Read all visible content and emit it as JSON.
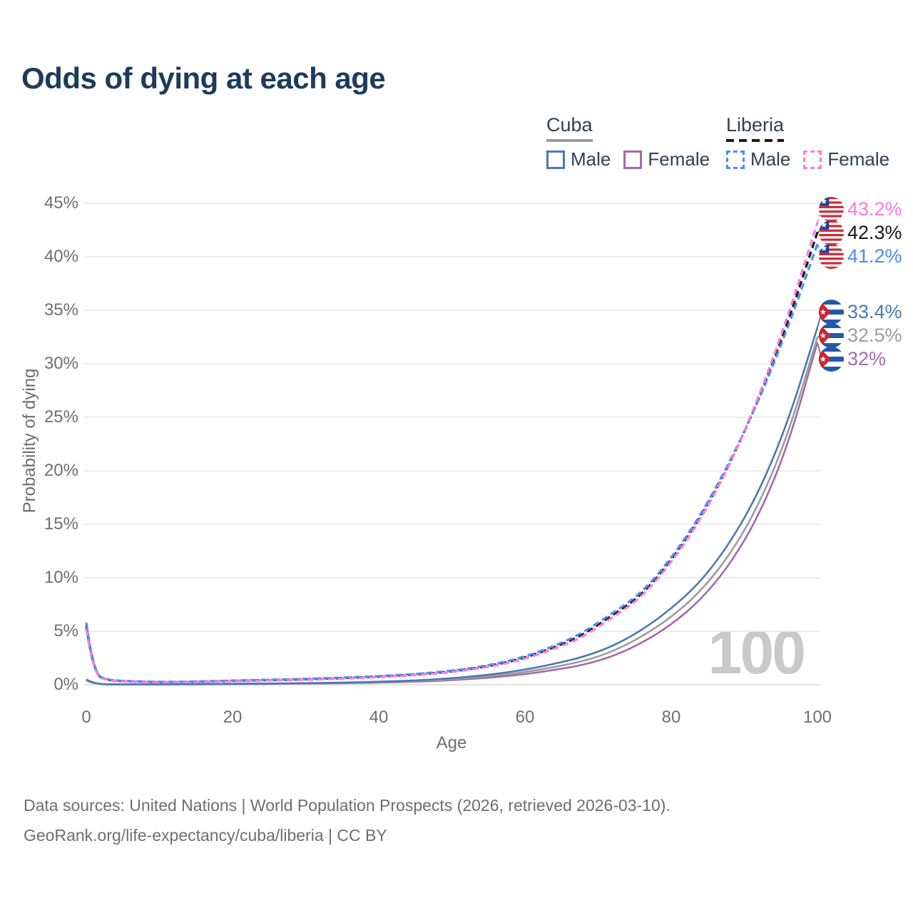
{
  "title": "Odds of dying at each age",
  "legend": {
    "cuba": {
      "name": "Cuba",
      "male_label": "Male",
      "female_label": "Female",
      "male_color": "#4a79b4",
      "female_color": "#a768a9",
      "line_color": "#9c9c9c",
      "line_style": "solid"
    },
    "liberia": {
      "name": "Liberia",
      "male_label": "Male",
      "female_label": "Female",
      "male_color": "#4d8cf2",
      "female_color": "#fb7be0",
      "line_color": "#191919",
      "line_style": "dashed"
    }
  },
  "chart_data": {
    "type": "line",
    "xlabel": "Age",
    "ylabel": "Probability of dying",
    "xlim": [
      0,
      100
    ],
    "ylim": [
      0,
      45
    ],
    "x_ticks": [
      "0",
      "20",
      "40",
      "60",
      "80",
      "100"
    ],
    "x_tick_values": [
      0,
      20,
      40,
      60,
      80,
      100
    ],
    "y_ticks": [
      {
        "value": 0,
        "label": "0%"
      },
      {
        "value": 5,
        "label": "5%"
      },
      {
        "value": 10,
        "label": "10%"
      },
      {
        "value": 15,
        "label": "15%"
      },
      {
        "value": 20,
        "label": "20%"
      },
      {
        "value": 25,
        "label": "25%"
      },
      {
        "value": 30,
        "label": "30%"
      },
      {
        "value": 35,
        "label": "35%"
      },
      {
        "value": 40,
        "label": "40%"
      },
      {
        "value": 45,
        "label": "45%"
      }
    ],
    "grid": true,
    "legend_position": "top-right",
    "series": [
      {
        "name": "Liberia Female",
        "group": "liberia",
        "sex": "female",
        "color": "#fb7be0",
        "dash": true,
        "end_label": "43.2%",
        "flag": "liberia-flag",
        "points": [
          [
            0,
            5.2
          ],
          [
            1,
            0.9
          ],
          [
            3,
            0.4
          ],
          [
            5,
            0.3
          ],
          [
            10,
            0.22
          ],
          [
            15,
            0.26
          ],
          [
            20,
            0.34
          ],
          [
            25,
            0.4
          ],
          [
            30,
            0.47
          ],
          [
            35,
            0.57
          ],
          [
            40,
            0.71
          ],
          [
            45,
            0.9
          ],
          [
            50,
            1.18
          ],
          [
            55,
            1.64
          ],
          [
            60,
            2.4
          ],
          [
            65,
            3.6
          ],
          [
            68,
            4.5
          ],
          [
            72,
            6.3
          ],
          [
            76,
            8.2
          ],
          [
            80,
            11.4
          ],
          [
            84,
            15.4
          ],
          [
            88,
            20.5
          ],
          [
            92,
            26.9
          ],
          [
            96,
            34.5
          ],
          [
            100,
            43.2
          ]
        ]
      },
      {
        "name": "Liberia Both sexes",
        "group": "liberia",
        "sex": "both",
        "color": "#191919",
        "dash": true,
        "end_label": "42.3%",
        "flag": "liberia-flag",
        "points": [
          [
            0,
            5.5
          ],
          [
            1,
            0.95
          ],
          [
            3,
            0.42
          ],
          [
            5,
            0.33
          ],
          [
            10,
            0.24
          ],
          [
            15,
            0.28
          ],
          [
            20,
            0.37
          ],
          [
            25,
            0.43
          ],
          [
            30,
            0.51
          ],
          [
            35,
            0.62
          ],
          [
            40,
            0.76
          ],
          [
            45,
            0.95
          ],
          [
            50,
            1.24
          ],
          [
            55,
            1.72
          ],
          [
            60,
            2.5
          ],
          [
            65,
            3.75
          ],
          [
            68,
            4.7
          ],
          [
            72,
            6.5
          ],
          [
            76,
            8.4
          ],
          [
            80,
            11.6
          ],
          [
            84,
            15.6
          ],
          [
            88,
            20.6
          ],
          [
            92,
            26.7
          ],
          [
            96,
            33.9
          ],
          [
            100,
            42.3
          ]
        ]
      },
      {
        "name": "Liberia Male",
        "group": "liberia",
        "sex": "male",
        "color": "#4d8cf2",
        "dash": true,
        "end_label": "41.2%",
        "flag": "liberia-flag",
        "points": [
          [
            0,
            5.8
          ],
          [
            1,
            1.0
          ],
          [
            3,
            0.45
          ],
          [
            5,
            0.35
          ],
          [
            10,
            0.26
          ],
          [
            15,
            0.3
          ],
          [
            20,
            0.4
          ],
          [
            25,
            0.46
          ],
          [
            30,
            0.55
          ],
          [
            35,
            0.66
          ],
          [
            40,
            0.8
          ],
          [
            45,
            1.0
          ],
          [
            50,
            1.3
          ],
          [
            55,
            1.8
          ],
          [
            60,
            2.6
          ],
          [
            65,
            3.9
          ],
          [
            68,
            4.9
          ],
          [
            72,
            6.7
          ],
          [
            76,
            8.6
          ],
          [
            80,
            11.8
          ],
          [
            84,
            15.8
          ],
          [
            88,
            20.8
          ],
          [
            92,
            26.6
          ],
          [
            96,
            33.4
          ],
          [
            100,
            41.2
          ]
        ]
      },
      {
        "name": "Cuba Male",
        "group": "cuba",
        "sex": "male",
        "color": "#4a79b4",
        "dash": false,
        "end_label": "33.4%",
        "flag": "cuba-flag",
        "points": [
          [
            0,
            0.5
          ],
          [
            1,
            0.06
          ],
          [
            5,
            0.03
          ],
          [
            10,
            0.03
          ],
          [
            15,
            0.06
          ],
          [
            20,
            0.1
          ],
          [
            25,
            0.12
          ],
          [
            30,
            0.15
          ],
          [
            35,
            0.2
          ],
          [
            40,
            0.28
          ],
          [
            45,
            0.4
          ],
          [
            50,
            0.6
          ],
          [
            55,
            0.92
          ],
          [
            60,
            1.4
          ],
          [
            64,
            1.95
          ],
          [
            68,
            2.6
          ],
          [
            72,
            3.6
          ],
          [
            76,
            5.1
          ],
          [
            80,
            7.1
          ],
          [
            84,
            9.6
          ],
          [
            88,
            13.2
          ],
          [
            92,
            18.0
          ],
          [
            96,
            24.6
          ],
          [
            100,
            33.4
          ]
        ]
      },
      {
        "name": "Cuba Both sexes",
        "group": "cuba",
        "sex": "both",
        "color": "#9c9c9c",
        "dash": false,
        "end_label": "32.5%",
        "flag": "cuba-flag",
        "points": [
          [
            0,
            0.45
          ],
          [
            1,
            0.055
          ],
          [
            5,
            0.028
          ],
          [
            10,
            0.028
          ],
          [
            15,
            0.05
          ],
          [
            20,
            0.08
          ],
          [
            25,
            0.1
          ],
          [
            30,
            0.13
          ],
          [
            35,
            0.17
          ],
          [
            40,
            0.24
          ],
          [
            45,
            0.34
          ],
          [
            50,
            0.51
          ],
          [
            55,
            0.78
          ],
          [
            60,
            1.18
          ],
          [
            64,
            1.65
          ],
          [
            68,
            2.2
          ],
          [
            72,
            3.1
          ],
          [
            76,
            4.5
          ],
          [
            80,
            6.3
          ],
          [
            84,
            8.7
          ],
          [
            88,
            12.1
          ],
          [
            92,
            16.8
          ],
          [
            96,
            23.4
          ],
          [
            100,
            32.5
          ]
        ]
      },
      {
        "name": "Cuba Female",
        "group": "cuba",
        "sex": "female",
        "color": "#a768a9",
        "dash": false,
        "end_label": "32%",
        "flag": "cuba-flag",
        "points": [
          [
            0,
            0.4
          ],
          [
            1,
            0.05
          ],
          [
            5,
            0.025
          ],
          [
            10,
            0.025
          ],
          [
            15,
            0.04
          ],
          [
            20,
            0.06
          ],
          [
            25,
            0.08
          ],
          [
            30,
            0.1
          ],
          [
            35,
            0.14
          ],
          [
            40,
            0.2
          ],
          [
            45,
            0.28
          ],
          [
            50,
            0.42
          ],
          [
            55,
            0.64
          ],
          [
            60,
            0.98
          ],
          [
            64,
            1.38
          ],
          [
            68,
            1.85
          ],
          [
            72,
            2.65
          ],
          [
            76,
            3.9
          ],
          [
            80,
            5.6
          ],
          [
            84,
            7.9
          ],
          [
            88,
            11.2
          ],
          [
            92,
            15.8
          ],
          [
            96,
            22.4
          ],
          [
            100,
            32.0
          ]
        ]
      }
    ]
  },
  "watermark": "100",
  "footer": {
    "line1": "Data sources: United Nations | World Population Prospects (2026, retrieved 2026-03-10).",
    "line2": "GeoRank.org/life-expectancy/cuba/liberia | CC BY"
  }
}
